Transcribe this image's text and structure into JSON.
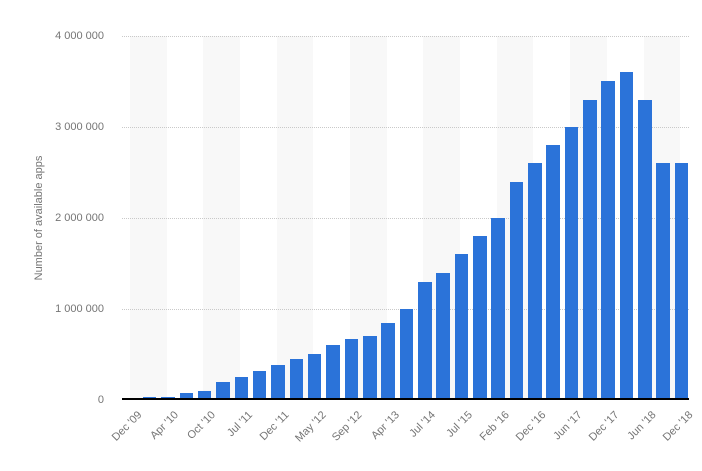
{
  "colors": {
    "bar": "#2b73d9",
    "stripe": "#f8f8f8",
    "gridline": "#c9c9c9",
    "axis_line": "#000000",
    "text": "#757575",
    "background": "#ffffff"
  },
  "chart_data": {
    "type": "bar",
    "title": "",
    "xlabel": "",
    "ylabel": "Number of available apps",
    "ylim": [
      0,
      4000000
    ],
    "grid": "horizontal-dotted",
    "legend": "none",
    "ytick_labels": [
      "4 000 000",
      "3 000 000",
      "2 000 000",
      "1 000 000",
      "0"
    ],
    "ytick_values": [
      4000000,
      3000000,
      2000000,
      1000000,
      0
    ],
    "bars": [
      {
        "label": "Dec '09",
        "value": 16000
      },
      {
        "label": "",
        "value": 30000
      },
      {
        "label": "Apr '10",
        "value": 38000
      },
      {
        "label": "",
        "value": 80000
      },
      {
        "label": "Oct '10",
        "value": 100000
      },
      {
        "label": "",
        "value": 200000
      },
      {
        "label": "Jul '11",
        "value": 250000
      },
      {
        "label": "",
        "value": 320000
      },
      {
        "label": "Dec '11",
        "value": 380000
      },
      {
        "label": "",
        "value": 450000
      },
      {
        "label": "May '12",
        "value": 500000
      },
      {
        "label": "",
        "value": 600000
      },
      {
        "label": "Sep '12",
        "value": 675000
      },
      {
        "label": "",
        "value": 700000
      },
      {
        "label": "Apr '13",
        "value": 850000
      },
      {
        "label": "",
        "value": 1000000
      },
      {
        "label": "Jul '14",
        "value": 1300000
      },
      {
        "label": "",
        "value": 1400000
      },
      {
        "label": "Jul '15",
        "value": 1600000
      },
      {
        "label": "",
        "value": 1800000
      },
      {
        "label": "Feb '16",
        "value": 2000000
      },
      {
        "label": "",
        "value": 2400000
      },
      {
        "label": "Dec '16",
        "value": 2600000
      },
      {
        "label": "",
        "value": 2800000
      },
      {
        "label": "Jun '17",
        "value": 3000000
      },
      {
        "label": "",
        "value": 3300000
      },
      {
        "label": "Dec '17",
        "value": 3500000
      },
      {
        "label": "",
        "value": 3600000
      },
      {
        "label": "Jun '18",
        "value": 3300000
      },
      {
        "label": "",
        "value": 2600000
      },
      {
        "label": "Dec '18",
        "value": 2600000
      }
    ]
  }
}
